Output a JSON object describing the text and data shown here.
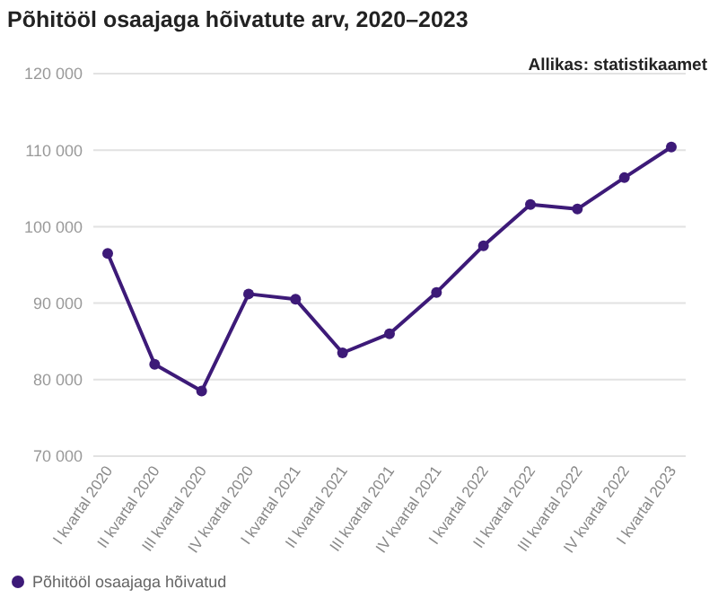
{
  "chart_data": {
    "type": "line",
    "title": "Põhitööl osaajaga hõivatute arv, 2020–2023",
    "annotations": [
      "Allikas: statistikaamet"
    ],
    "categories": [
      "I kvartal 2020",
      "II kvartal 2020",
      "III kvartal 2020",
      "IV kvartal 2020",
      "I kvartal 2021",
      "II kvartal 2021",
      "III kvartal 2021",
      "IV kvartal 2021",
      "I kvartal 2022",
      "II kvartal 2022",
      "III kvartal 2022",
      "IV kvartal 2022",
      "I kvartal 2023"
    ],
    "series": [
      {
        "name": "Põhitööl osaajaga hõivatud",
        "color": "#3d1a78",
        "values": [
          96500,
          82000,
          78500,
          91200,
          90500,
          83500,
          86000,
          91400,
          97500,
          102900,
          102300,
          106400,
          110400
        ]
      }
    ],
    "ylim": [
      70000,
      120000
    ],
    "yticks": [
      {
        "value": 70000,
        "label": "70 000"
      },
      {
        "value": 80000,
        "label": "80 000"
      },
      {
        "value": 90000,
        "label": "90 000"
      },
      {
        "value": 100000,
        "label": "100 000"
      },
      {
        "value": 110000,
        "label": "110 000"
      },
      {
        "value": 120000,
        "label": "120 000"
      }
    ],
    "grid": "y",
    "legend": "bottom left",
    "marker": "circle",
    "line_style": "solid"
  }
}
